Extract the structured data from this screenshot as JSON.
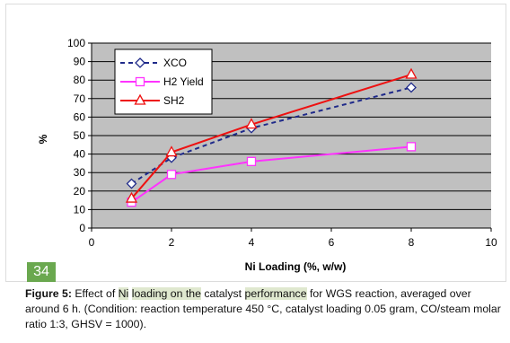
{
  "chart_data": {
    "type": "line",
    "xlabel": "Ni Loading (%, w/w)",
    "ylabel": "%",
    "xlim": [
      0,
      10
    ],
    "ylim": [
      0,
      100
    ],
    "xticks": [
      0,
      2,
      4,
      6,
      8,
      10
    ],
    "yticks": [
      0,
      10,
      20,
      30,
      40,
      50,
      60,
      70,
      80,
      90,
      100
    ],
    "grid": "horizontal",
    "plot_background": "#c0c0c0",
    "legend_position": "top-left",
    "series": [
      {
        "name": "XCO",
        "x": [
          1,
          2,
          4,
          8
        ],
        "y": [
          24,
          38,
          54,
          76
        ],
        "color": "#1f2a8a",
        "dash": "dashed",
        "marker": "diamond"
      },
      {
        "name": "H2 Yield",
        "x": [
          1,
          2,
          4,
          8
        ],
        "y": [
          14,
          29,
          36,
          44
        ],
        "color": "#ff33ff",
        "dash": "solid",
        "marker": "square"
      },
      {
        "name": "SH2",
        "x": [
          1,
          2,
          4,
          8
        ],
        "y": [
          16,
          41,
          56,
          83
        ],
        "color": "#ee1111",
        "dash": "solid",
        "marker": "triangle"
      }
    ]
  },
  "page_badge": "34",
  "caption": {
    "label": "Figure 5:",
    "p1": " Effect of ",
    "h1": "Ni",
    "p2": " ",
    "h2": "loading on the",
    "p3": " catalyst ",
    "h3": "performance",
    "p4": " for WGS reaction, averaged over around 6 h. (Condition: reaction temperature 450 °C, catalyst loading 0.05 gram, CO/steam molar ratio 1:3, GHSV = 1000)."
  }
}
